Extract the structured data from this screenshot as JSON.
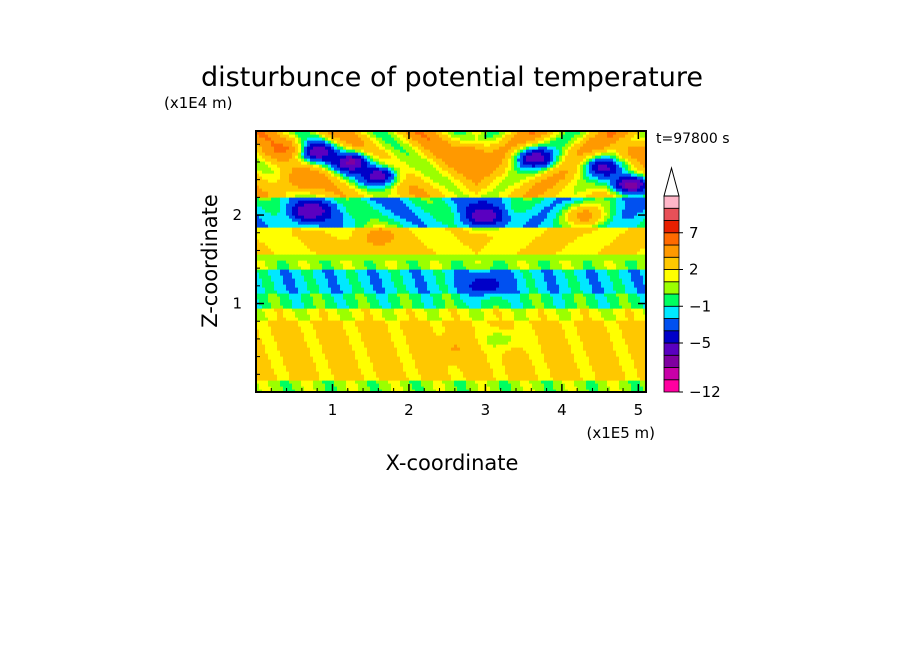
{
  "chart_data": {
    "type": "heatmap",
    "title": "disturbunce of potential temperature",
    "xlabel": "X-coordinate",
    "ylabel": "Z-coordinate",
    "x_scale_label": "(x1E5 m)",
    "y_scale_label": "(x1E4 m)",
    "time_label": "t=97800 s",
    "xlim": [
      0,
      5.1
    ],
    "ylim": [
      0,
      2.95
    ],
    "x_ticks": [
      1,
      2,
      3,
      4,
      5
    ],
    "x_tick_labels": [
      "1",
      "2",
      "3",
      "4",
      "5"
    ],
    "y_ticks": [
      1,
      2
    ],
    "y_tick_labels": [
      "1",
      "2"
    ],
    "colorbar": {
      "levels_low_to_high": [
        -12,
        -10,
        -8,
        -6.5,
        -5,
        -3.5,
        -2,
        -1,
        0,
        1,
        2,
        3.7,
        5.3,
        7,
        8.3,
        9.7,
        11
      ],
      "colors_low_to_high": [
        "#ff00a0",
        "#c800a8",
        "#7f00a0",
        "#5a00c0",
        "#0000c8",
        "#0050f0",
        "#00e8ff",
        "#00ff60",
        "#9bff00",
        "#ffff00",
        "#ffc800",
        "#ff9900",
        "#ff6a00",
        "#e82000",
        "#e85058",
        "#ffb6c8"
      ],
      "extend_top_color": "#ffffff",
      "tick_values": [
        -12,
        -5,
        -1,
        2,
        7
      ],
      "tick_labels": [
        "−12",
        "−5",
        "−1",
        "2",
        "7"
      ]
    },
    "field_description_values": {
      "layers": [
        {
          "z_from": 0.0,
          "z_to": 0.15,
          "value": 0.5
        },
        {
          "z_from": 0.15,
          "z_to": 0.8,
          "value": 2.4
        },
        {
          "z_from": 0.8,
          "z_to": 0.95,
          "value": 1.4
        },
        {
          "z_from": 0.95,
          "z_to": 1.12,
          "value": -0.5
        },
        {
          "z_from": 1.12,
          "z_to": 1.38,
          "value": -1.5
        },
        {
          "z_from": 1.38,
          "z_to": 1.55,
          "value": 0.5
        },
        {
          "z_from": 1.55,
          "z_to": 1.85,
          "value": 2.0
        },
        {
          "z_from": 1.85,
          "z_to": 2.2,
          "value": -1.3
        },
        {
          "z_from": 2.2,
          "z_to": 2.95,
          "value": 2.5
        }
      ],
      "features": [
        {
          "x": 0.75,
          "z": 2.72,
          "value": -7.5
        },
        {
          "x": 1.25,
          "z": 2.6,
          "value": -7.0
        },
        {
          "x": 0.7,
          "z": 2.05,
          "value": -6.5
        },
        {
          "x": 1.6,
          "z": 2.45,
          "value": -6.0
        },
        {
          "x": 3.0,
          "z": 2.0,
          "value": -6.5
        },
        {
          "x": 3.65,
          "z": 2.65,
          "value": -6.0
        },
        {
          "x": 4.55,
          "z": 2.55,
          "value": -5.5
        },
        {
          "x": 4.9,
          "z": 2.35,
          "value": -7.5
        },
        {
          "x": 0.35,
          "z": 2.75,
          "value": 5.5
        },
        {
          "x": 0.6,
          "z": 2.4,
          "value": 5.0
        },
        {
          "x": 2.8,
          "z": 2.7,
          "value": 5.0
        },
        {
          "x": 5.0,
          "z": 2.72,
          "value": 5.0
        },
        {
          "x": 1.6,
          "z": 1.75,
          "value": 4.5
        },
        {
          "x": 4.3,
          "z": 2.0,
          "value": 4.5
        },
        {
          "x": 2.6,
          "z": 0.5,
          "value": 3.8
        },
        {
          "x": 3.0,
          "z": 1.22,
          "value": -4.5
        },
        {
          "x": 3.2,
          "z": 0.6,
          "value": 0.5
        }
      ]
    }
  }
}
